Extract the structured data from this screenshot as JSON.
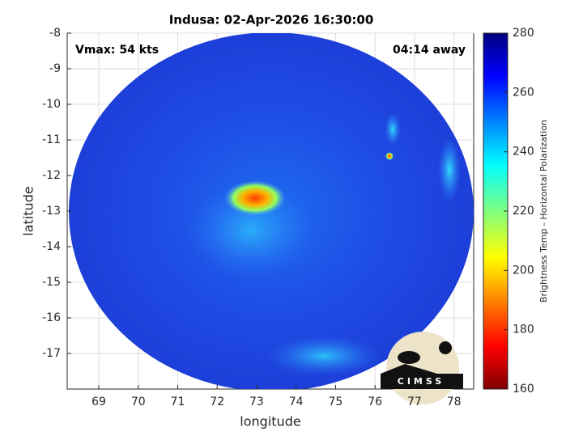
{
  "chart_data": {
    "type": "heatmap",
    "title": "Indusa: 02-Apr-2026 16:30:00",
    "annotations": [
      "Vmax: 54 kts",
      "04:14 away"
    ],
    "x_label": "longitude",
    "y_label": "latitude",
    "xlim": [
      68.2,
      78.5
    ],
    "xticks": [
      69,
      70,
      71,
      72,
      73,
      74,
      75,
      76,
      77,
      78
    ],
    "ylim": [
      -18,
      -8
    ],
    "yticks": [
      -8,
      -9,
      -10,
      -11,
      -12,
      -13,
      -14,
      -15,
      -16,
      -17
    ],
    "grid": true,
    "colorbar": {
      "label": "Brightness Temp - Horizontal Polarization",
      "colormap": "jet",
      "lim": [
        160,
        280
      ],
      "ticks": [
        160,
        180,
        200,
        220,
        240,
        260,
        280
      ]
    },
    "logo_text": "CIMSS"
  }
}
